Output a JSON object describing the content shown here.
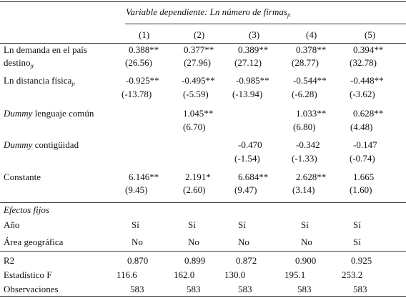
{
  "header": {
    "dep_var_prefix": "Variable dependiente: Ln número de firmas",
    "dep_var_sub": "jt",
    "columns": [
      "(1)",
      "(2)",
      "(3)",
      "(4)",
      "(5)"
    ]
  },
  "rows": {
    "demanda": {
      "label_line1": "Ln demanda en el país",
      "label_line2": "destino",
      "label_sub": "jt",
      "coef": [
        "0.388**",
        "0.377**",
        "0.389**",
        "0.378**",
        "0.394**"
      ],
      "t": [
        "(26.56)",
        "(27.96)",
        "(27.12)",
        "(28.77)",
        "(32.78)"
      ]
    },
    "distancia": {
      "label": "Ln distancia física",
      "label_sub": "jt",
      "coef": [
        "-0.925**",
        "-0.495**",
        "-0.985**",
        "-0.544**",
        "-0.448**"
      ],
      "t": [
        "(-13.78)",
        "(-5.59)",
        "(-13.94)",
        "(-6.28)",
        "(-3.62)"
      ]
    },
    "lenguaje": {
      "label_italic": "Dummy",
      "label_rest": " lenguaje común",
      "coef": [
        "",
        "1.045**",
        "",
        "1.033**",
        "0.628**"
      ],
      "t": [
        "",
        "(6.70)",
        "",
        "(6.80)",
        "(4.48)"
      ]
    },
    "contiguidad": {
      "label_italic": "Dummy",
      "label_rest": " contigüidad",
      "coef": [
        "",
        "",
        "-0.470",
        "-0.342",
        "-0.147"
      ],
      "t": [
        "",
        "",
        "(-1.54)",
        "(-1.33)",
        "(-0.74)"
      ]
    },
    "constante": {
      "label": "Constante",
      "coef": [
        "6.146**",
        "2.191*",
        "6.684**",
        "2.628**",
        "1.665"
      ],
      "t": [
        "(9.45)",
        "(2.60)",
        "(9.47)",
        "(3.14)",
        "(1.60)"
      ]
    }
  },
  "fixed_effects": {
    "title": "Efectos fijos",
    "anio": {
      "label": "Año",
      "values": [
        "Sí",
        "Sí",
        "Sí",
        "Sí",
        "Sí"
      ]
    },
    "area": {
      "label": "Área geográfica",
      "values": [
        "No",
        "No",
        "No",
        "No",
        "Sí"
      ]
    }
  },
  "stats": {
    "r2": {
      "label": "R2",
      "values": [
        "0.870",
        "0.899",
        "0.872",
        "0.900",
        "0.925"
      ]
    },
    "f": {
      "label": "Estadístico F",
      "values": [
        "116.6",
        "162.0",
        "130.0",
        "195.1",
        "253.2"
      ]
    },
    "obs": {
      "label": "Observaciones",
      "values": [
        "583",
        "583",
        "583",
        "583",
        "583"
      ]
    }
  }
}
